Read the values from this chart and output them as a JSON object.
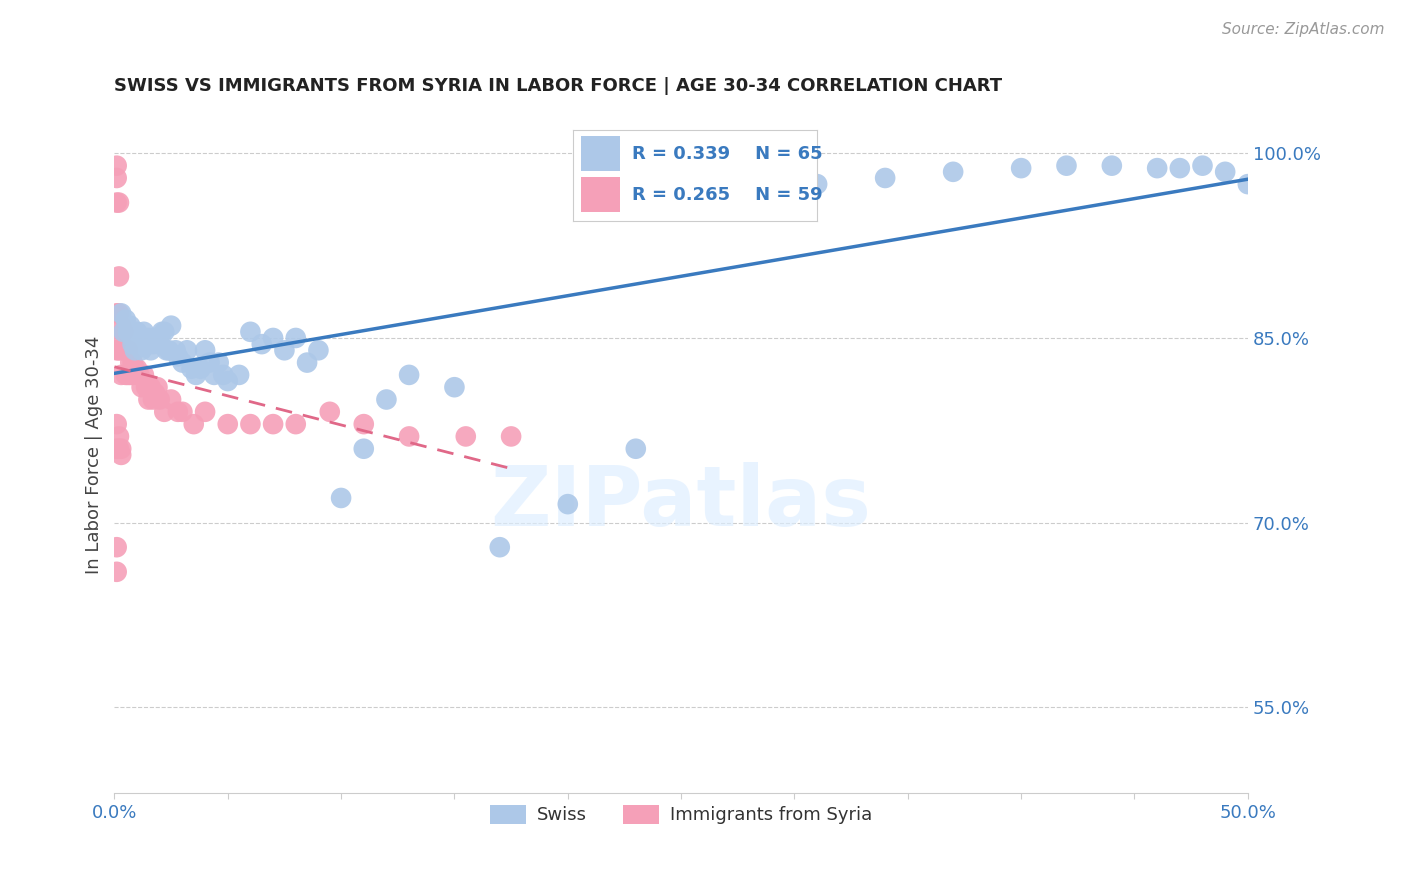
{
  "title": "SWISS VS IMMIGRANTS FROM SYRIA IN LABOR FORCE | AGE 30-34 CORRELATION CHART",
  "source": "Source: ZipAtlas.com",
  "ylabel": "In Labor Force | Age 30-34",
  "legend_swiss_R": "R = 0.339",
  "legend_swiss_N": "N = 65",
  "legend_syria_R": "R = 0.265",
  "legend_syria_N": "N = 59",
  "legend_swiss_label": "Swiss",
  "legend_syria_label": "Immigrants from Syria",
  "swiss_color": "#adc8e8",
  "syria_color": "#f5a0b8",
  "swiss_line_color": "#3a7abf",
  "syria_line_color": "#e06888",
  "tick_color": "#3a7abf",
  "legend_text_color": "#3a7abf",
  "grid_color": "#cccccc",
  "background_color": "#ffffff",
  "xlim": [
    0.0,
    0.5
  ],
  "ylim": [
    0.48,
    1.03
  ],
  "swiss_x": [
    0.003,
    0.004,
    0.005,
    0.006,
    0.007,
    0.008,
    0.008,
    0.009,
    0.01,
    0.011,
    0.012,
    0.013,
    0.014,
    0.015,
    0.016,
    0.017,
    0.018,
    0.019,
    0.02,
    0.021,
    0.022,
    0.023,
    0.024,
    0.025,
    0.027,
    0.028,
    0.03,
    0.032,
    0.034,
    0.036,
    0.038,
    0.04,
    0.042,
    0.044,
    0.046,
    0.048,
    0.05,
    0.055,
    0.06,
    0.065,
    0.07,
    0.075,
    0.08,
    0.085,
    0.09,
    0.1,
    0.11,
    0.12,
    0.13,
    0.15,
    0.17,
    0.2,
    0.23,
    0.27,
    0.31,
    0.34,
    0.37,
    0.4,
    0.42,
    0.44,
    0.46,
    0.47,
    0.48,
    0.49,
    0.5
  ],
  "swiss_y": [
    0.87,
    0.855,
    0.865,
    0.855,
    0.86,
    0.85,
    0.845,
    0.84,
    0.855,
    0.845,
    0.84,
    0.855,
    0.845,
    0.85,
    0.84,
    0.845,
    0.85,
    0.85,
    0.845,
    0.855,
    0.855,
    0.84,
    0.84,
    0.86,
    0.84,
    0.835,
    0.83,
    0.84,
    0.825,
    0.82,
    0.825,
    0.84,
    0.83,
    0.82,
    0.83,
    0.82,
    0.815,
    0.82,
    0.855,
    0.845,
    0.85,
    0.84,
    0.85,
    0.83,
    0.84,
    0.72,
    0.76,
    0.8,
    0.82,
    0.81,
    0.68,
    0.715,
    0.76,
    0.96,
    0.975,
    0.98,
    0.985,
    0.988,
    0.99,
    0.99,
    0.988,
    0.988,
    0.99,
    0.985,
    0.975
  ],
  "syria_x": [
    0.001,
    0.001,
    0.001,
    0.001,
    0.001,
    0.001,
    0.002,
    0.002,
    0.002,
    0.002,
    0.003,
    0.003,
    0.003,
    0.004,
    0.004,
    0.005,
    0.005,
    0.006,
    0.006,
    0.007,
    0.007,
    0.008,
    0.008,
    0.009,
    0.01,
    0.01,
    0.011,
    0.012,
    0.013,
    0.014,
    0.015,
    0.016,
    0.017,
    0.018,
    0.019,
    0.02,
    0.022,
    0.025,
    0.028,
    0.03,
    0.035,
    0.04,
    0.05,
    0.06,
    0.07,
    0.08,
    0.095,
    0.11,
    0.13,
    0.155,
    0.175,
    0.001,
    0.001,
    0.002,
    0.002,
    0.003,
    0.003,
    0.001,
    0.001
  ],
  "syria_y": [
    0.99,
    0.98,
    0.96,
    0.87,
    0.85,
    0.84,
    0.96,
    0.9,
    0.87,
    0.84,
    0.86,
    0.84,
    0.82,
    0.855,
    0.84,
    0.84,
    0.82,
    0.84,
    0.82,
    0.83,
    0.82,
    0.83,
    0.82,
    0.825,
    0.82,
    0.825,
    0.82,
    0.81,
    0.82,
    0.81,
    0.8,
    0.81,
    0.8,
    0.805,
    0.81,
    0.8,
    0.79,
    0.8,
    0.79,
    0.79,
    0.78,
    0.79,
    0.78,
    0.78,
    0.78,
    0.78,
    0.79,
    0.78,
    0.77,
    0.77,
    0.77,
    0.78,
    0.76,
    0.77,
    0.76,
    0.76,
    0.755,
    0.68,
    0.66
  ]
}
